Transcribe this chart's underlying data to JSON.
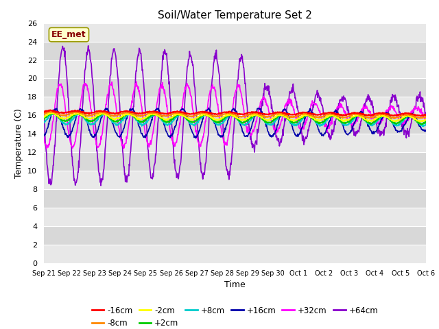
{
  "title": "Soil/Water Temperature Set 2",
  "xlabel": "Time",
  "ylabel": "Temperature (C)",
  "ylim": [
    0,
    26
  ],
  "yticks": [
    0,
    2,
    4,
    6,
    8,
    10,
    12,
    14,
    16,
    18,
    20,
    22,
    24,
    26
  ],
  "background_color": "#ffffff",
  "plot_bg_light": "#e8e8e8",
  "plot_bg_dark": "#d8d8d8",
  "station_label": "EE_met",
  "series_colors": {
    "-16cm": "#ff0000",
    "-8cm": "#ff8800",
    "-2cm": "#ffff00",
    "+2cm": "#00cc00",
    "+8cm": "#00cccc",
    "+16cm": "#0000aa",
    "+32cm": "#ff00ff",
    "+64cm": "#8800cc"
  },
  "legend_order": [
    "-16cm",
    "-8cm",
    "-2cm",
    "+2cm",
    "+8cm",
    "+16cm",
    "+32cm",
    "+64cm"
  ],
  "n_points": 1000,
  "total_days": 15
}
